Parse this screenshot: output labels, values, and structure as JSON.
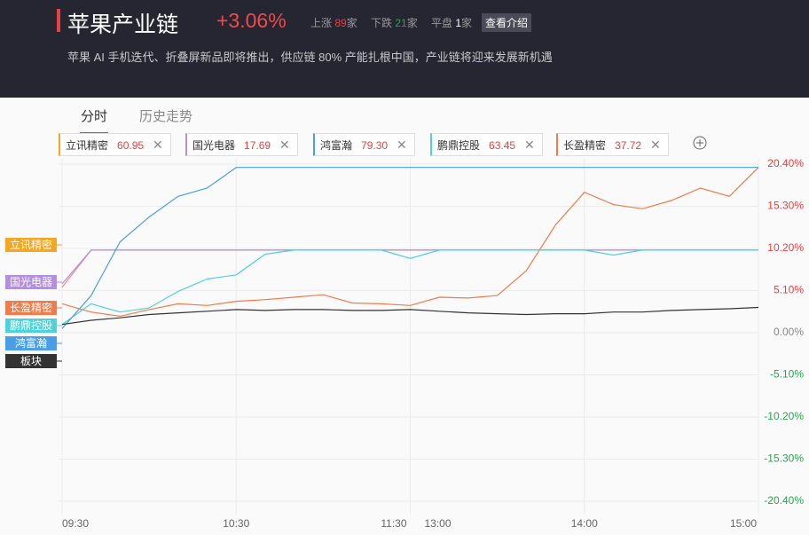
{
  "header": {
    "title": "苹果产业链",
    "change": "+3.06%",
    "stats": [
      {
        "label": "上涨",
        "count": 89,
        "unit": "家"
      },
      {
        "label": "下跌",
        "count": 21,
        "unit": "家"
      },
      {
        "label": "平盘",
        "count": 1,
        "unit": "家"
      }
    ],
    "button": "查看介绍",
    "description": "苹果 AI 手机迭代、折叠屏新品即将推出，供应链 80% 产能扎根中国，产业链将迎来发展新机遇"
  },
  "tabs": [
    "分时",
    "历史走势"
  ],
  "stocks": [
    {
      "name": "立讯精密",
      "price": "60.95",
      "color": "#f5a623"
    },
    {
      "name": "国光电器",
      "price": "17.69",
      "color": "#b48ee0"
    },
    {
      "name": "鸿富瀚",
      "price": "79.30",
      "color": "#4a9ee8"
    },
    {
      "name": "鹏鼎控股",
      "price": "63.45",
      "color": "#4fd1d9"
    },
    {
      "name": "长盈精密",
      "price": "37.72",
      "color": "#f07c4b"
    }
  ],
  "chart_data": {
    "type": "line",
    "x": [
      "09:30",
      "09:40",
      "09:50",
      "10:00",
      "10:10",
      "10:20",
      "10:30",
      "10:40",
      "10:50",
      "11:00",
      "11:10",
      "11:20",
      "11:30",
      "13:10",
      "13:20",
      "13:30",
      "13:40",
      "13:50",
      "14:00",
      "14:10",
      "14:20",
      "14:30",
      "14:40",
      "14:50",
      "15:00"
    ],
    "xticks": [
      "09:30",
      "10:30",
      "11:30",
      "13:00",
      "14:00",
      "15:00"
    ],
    "ylim": [
      -20.4,
      20.4
    ],
    "yticks": [
      {
        "value": 20.4,
        "label": "20.40%"
      },
      {
        "value": 15.3,
        "label": "15.30%"
      },
      {
        "value": 10.2,
        "label": "10.20%"
      },
      {
        "value": 5.1,
        "label": "5.10%"
      },
      {
        "value": 0,
        "label": "0.00%"
      },
      {
        "value": -5.1,
        "label": "-5.10%"
      },
      {
        "value": -10.2,
        "label": "-10.20%"
      },
      {
        "value": -15.3,
        "label": "-15.30%"
      },
      {
        "value": -20.4,
        "label": "-20.40%"
      }
    ],
    "grid": true,
    "series": [
      {
        "name": "立讯精密",
        "color": "#f08a8a",
        "label_color": "#f5a623",
        "values": [
          5.5,
          10,
          10,
          10,
          10,
          10,
          10,
          10,
          10,
          10,
          10,
          10,
          10,
          10,
          10,
          10,
          10,
          10,
          10,
          10,
          10,
          10,
          10,
          10,
          10
        ]
      },
      {
        "name": "国光电器",
        "color": "#b48ee0",
        "label_color": "#b48ee0",
        "values": [
          5.9,
          10,
          10,
          10,
          10,
          10,
          10,
          10,
          10,
          10,
          10,
          10,
          10,
          10,
          10,
          10,
          10,
          10,
          10,
          10,
          10,
          10,
          10,
          10,
          10
        ]
      },
      {
        "name": "长盈精密",
        "color": "#f07c4b",
        "label_color": "#f07c4b",
        "values": [
          3.5,
          2.5,
          2.0,
          2.8,
          3.5,
          3.3,
          3.8,
          4.0,
          4.3,
          4.6,
          3.6,
          3.5,
          3.3,
          4.3,
          4.2,
          4.5,
          7.5,
          13.0,
          17.0,
          15.5,
          15.0,
          16.0,
          17.5,
          16.5,
          20.0
        ]
      },
      {
        "name": "鹏鼎控股",
        "color": "#4fd1d9",
        "label_color": "#4fd1d9",
        "values": [
          1.0,
          3.5,
          2.5,
          3.0,
          5.0,
          6.5,
          7.0,
          9.5,
          10,
          10,
          10,
          10,
          9.0,
          10,
          10,
          10,
          10,
          10,
          10,
          9.4,
          10,
          10,
          10,
          10,
          10
        ]
      },
      {
        "name": "鸿富瀚",
        "color": "#4a9ee8",
        "label_color": "#4a9ee8",
        "values": [
          0.5,
          4.5,
          11.0,
          14.0,
          16.5,
          17.5,
          20.0,
          20.0,
          20.0,
          20.0,
          20.0,
          20.0,
          20.0,
          20.0,
          20.0,
          20.0,
          20.0,
          20.0,
          20.0,
          20.0,
          20.0,
          20.0,
          20.0,
          20.0,
          20.0
        ]
      },
      {
        "name": "板块",
        "color": "#333333",
        "label_color": "#333333",
        "values": [
          1.0,
          1.5,
          1.8,
          2.2,
          2.4,
          2.6,
          2.8,
          2.7,
          2.8,
          2.8,
          2.7,
          2.7,
          2.8,
          2.6,
          2.4,
          2.3,
          2.2,
          2.3,
          2.3,
          2.5,
          2.5,
          2.7,
          2.8,
          2.9,
          3.06
        ]
      }
    ]
  }
}
